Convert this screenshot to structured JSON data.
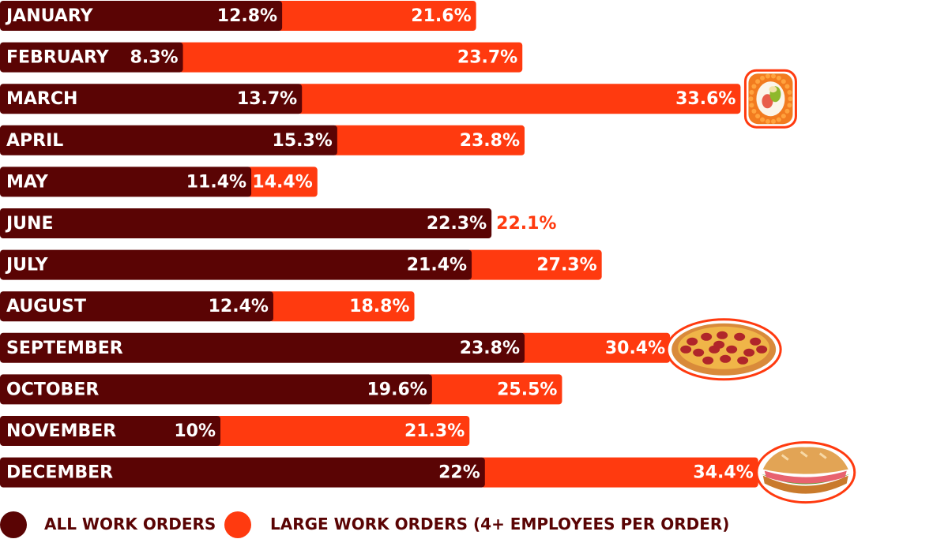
{
  "colors": {
    "all_orders": "#5a0404",
    "large_orders": "#ff3a0f",
    "label_text": "#ffffff"
  },
  "legend": {
    "all_label": "ALL WORK ORDERS",
    "large_label": "LARGE  WORK ORDERS (4+ EMPLOYEES PER ORDER)"
  },
  "chart_data": {
    "type": "bar",
    "orientation": "horizontal",
    "stacked": true,
    "xlim": [
      0,
      56
    ],
    "grid": false,
    "legend_position": "bottom-left",
    "categories": [
      "JANUARY",
      "FEBRUARY",
      "MARCH",
      "APRIL",
      "MAY",
      "JUNE",
      "JULY",
      "AUGUST",
      "SEPTEMBER",
      "OCTOBER",
      "NOVEMBER",
      "DECEMBER"
    ],
    "series": [
      {
        "name": "ALL WORK ORDERS",
        "values": [
          12.8,
          8.3,
          13.7,
          15.3,
          11.4,
          22.3,
          21.4,
          12.4,
          23.8,
          19.6,
          10,
          22
        ],
        "labels": [
          "12.8%",
          "8.3%",
          "13.7%",
          "15.3%",
          "11.4%",
          "22.3%",
          "21.4%",
          "12.4%",
          "23.8%",
          "19.6%",
          "10%",
          "22%"
        ]
      },
      {
        "name": "LARGE  WORK ORDERS (4+ EMPLOYEES PER ORDER)",
        "values": [
          21.6,
          23.7,
          33.6,
          23.8,
          14.4,
          22.1,
          27.3,
          18.8,
          30.4,
          25.5,
          21.3,
          34.4
        ],
        "labels": [
          "21.6%",
          "23.7%",
          "33.6%",
          "23.8%",
          "14.4%",
          "22.1%",
          "27.3%",
          "18.8%",
          "30.4%",
          "25.5%",
          "21.3%",
          "34.4%"
        ]
      }
    ],
    "illustrations": [
      {
        "category": "MARCH",
        "icon": "sushi-roll-icon"
      },
      {
        "category": "SEPTEMBER",
        "icon": "pizza-icon"
      },
      {
        "category": "DECEMBER",
        "icon": "sandwich-icon"
      }
    ]
  }
}
